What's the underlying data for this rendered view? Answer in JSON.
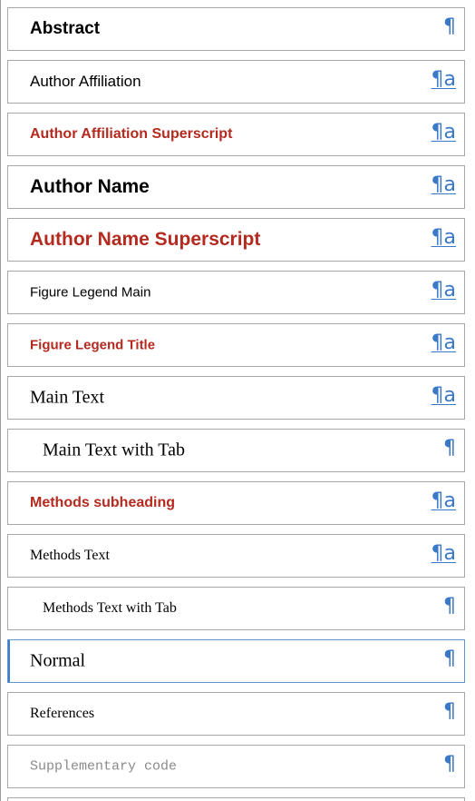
{
  "styles": {
    "items": [
      {
        "name": "Abstract",
        "type_glyph": "¶",
        "linked": false
      },
      {
        "name": "Author Affiliation",
        "type_glyph": "¶a",
        "linked": true
      },
      {
        "name": "Author  Affiliation Superscript",
        "type_glyph": "¶a",
        "linked": true
      },
      {
        "name": "Author Name",
        "type_glyph": "¶a",
        "linked": true
      },
      {
        "name": "Author Name Superscript",
        "type_glyph": "¶a",
        "linked": true
      },
      {
        "name": "Figure Legend Main",
        "type_glyph": "¶a",
        "linked": true
      },
      {
        "name": "Figure Legend Title",
        "type_glyph": "¶a",
        "linked": true
      },
      {
        "name": "Main Text",
        "type_glyph": "¶a",
        "linked": true
      },
      {
        "name": "Main Text with Tab",
        "type_glyph": "¶",
        "linked": false
      },
      {
        "name": "Methods subheading",
        "type_glyph": "¶a",
        "linked": true
      },
      {
        "name": "Methods Text",
        "type_glyph": "¶a",
        "linked": true
      },
      {
        "name": "Methods Text with Tab",
        "type_glyph": "¶",
        "linked": false
      },
      {
        "name": "Normal",
        "type_glyph": "¶",
        "linked": false,
        "selected": true
      },
      {
        "name": "References",
        "type_glyph": "¶",
        "linked": false
      },
      {
        "name": "Supplementary code",
        "type_glyph": "¶",
        "linked": false
      }
    ]
  },
  "colors": {
    "accent": "#3a78c8",
    "heading_red": "#b52a1f",
    "border": "#a7a7a7",
    "selected_border": "#5f95cc"
  }
}
